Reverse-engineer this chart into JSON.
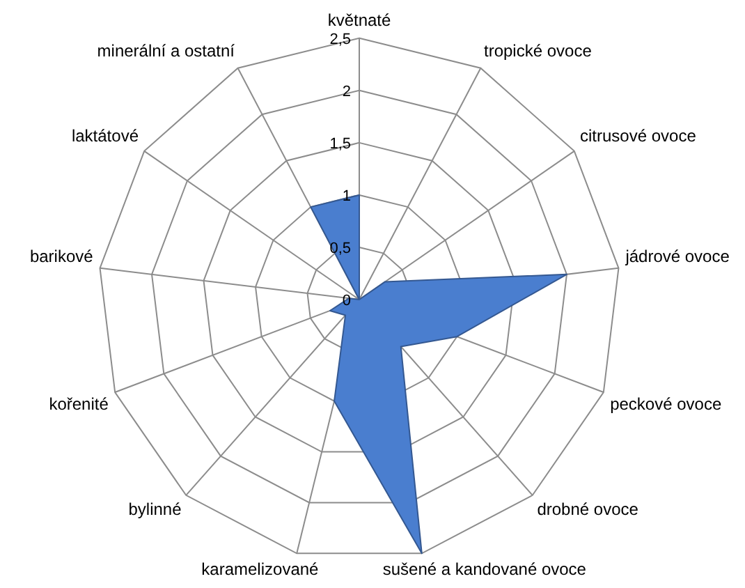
{
  "chart_data": {
    "type": "radar",
    "categories": [
      "květnaté",
      "tropické ovoce",
      "citrusové ovoce",
      "jádrové ovoce",
      "peckové ovoce",
      "drobné ovoce",
      "sušené a kandované ovoce",
      "karamelizované",
      "bylinné",
      "kořenité",
      "barikové",
      "laktátové",
      "minerální a ostatní"
    ],
    "values": [
      1,
      0,
      0.3,
      2,
      1,
      0.6,
      2.5,
      1,
      0.2,
      0.3,
      0.1,
      0,
      1
    ],
    "color": "#4a7ecf",
    "ylim": [
      0,
      2.5
    ],
    "yticks": [
      0,
      {
        "value": 0.5,
        "label": "0,5"
      },
      1,
      {
        "value": 1.5,
        "label": "1,5"
      },
      2,
      {
        "value": 2.5,
        "label": "2,5"
      }
    ],
    "grid": true
  }
}
